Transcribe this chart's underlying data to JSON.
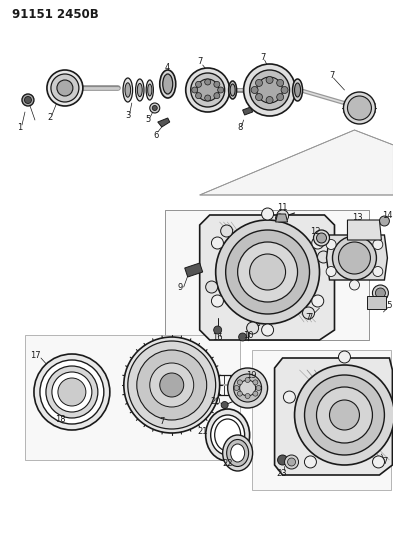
{
  "title": "91151 2450B",
  "bg_color": "#ffffff",
  "fig_width": 3.94,
  "fig_height": 5.33,
  "dpi": 100,
  "title_fontsize": 8.5,
  "title_fontweight": "bold",
  "label_fontsize": 6.0,
  "line_color": "#1a1a1a",
  "part_fill": "#d8d8d8",
  "part_edge": "#1a1a1a",
  "dark_fill": "#555555",
  "mid_fill": "#aaaaaa",
  "light_fill": "#eeeeee"
}
